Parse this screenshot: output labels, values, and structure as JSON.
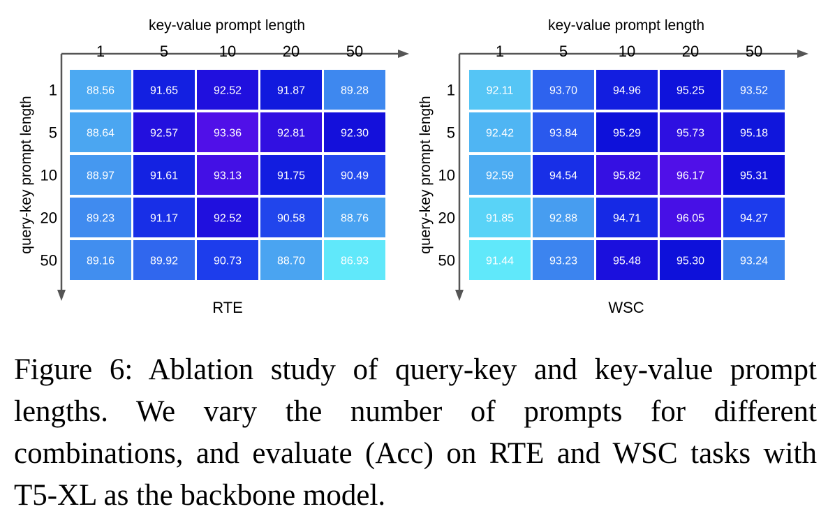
{
  "chart_data": [
    {
      "type": "heatmap",
      "title": "RTE",
      "xlabel": "key-value prompt length",
      "ylabel": "query-key prompt length",
      "x": [
        "1",
        "5",
        "10",
        "20",
        "50"
      ],
      "y": [
        "1",
        "5",
        "10",
        "20",
        "50"
      ],
      "values": [
        [
          88.56,
          91.65,
          92.52,
          91.87,
          89.28
        ],
        [
          88.64,
          92.57,
          93.36,
          92.81,
          92.3
        ],
        [
          88.97,
          91.61,
          93.13,
          91.75,
          90.49
        ],
        [
          89.23,
          91.17,
          92.52,
          90.58,
          88.76
        ],
        [
          89.16,
          89.92,
          90.73,
          88.7,
          86.93
        ]
      ],
      "labels": [
        [
          "88.56",
          "91.65",
          "92.52",
          "91.87",
          "89.28"
        ],
        [
          "88.64",
          "92.57",
          "93.36",
          "92.81",
          "92.30"
        ],
        [
          "88.97",
          "91.61",
          "93.13",
          "91.75",
          "90.49"
        ],
        [
          "89.23",
          "91.17",
          "92.52",
          "90.58",
          "88.76"
        ],
        [
          "89.16",
          "89.92",
          "90.73",
          "88.70",
          "86.93"
        ]
      ]
    },
    {
      "type": "heatmap",
      "title": "WSC",
      "xlabel": "key-value prompt length",
      "ylabel": "query-key prompt length",
      "x": [
        "1",
        "5",
        "10",
        "20",
        "50"
      ],
      "y": [
        "1",
        "5",
        "10",
        "20",
        "50"
      ],
      "values": [
        [
          92.11,
          93.7,
          94.96,
          95.25,
          93.52
        ],
        [
          92.42,
          93.84,
          95.29,
          95.73,
          95.18
        ],
        [
          92.59,
          94.54,
          95.82,
          96.17,
          95.31
        ],
        [
          91.85,
          92.88,
          94.71,
          96.05,
          94.27
        ],
        [
          91.44,
          93.23,
          95.48,
          95.3,
          93.24
        ]
      ],
      "labels": [
        [
          "92.11",
          "93.70",
          "94.96",
          "95.25",
          "93.52"
        ],
        [
          "92.42",
          "93.84",
          "95.29",
          "95.73",
          "95.18"
        ],
        [
          "92.59",
          "94.54",
          "95.82",
          "96.17",
          "95.31"
        ],
        [
          "91.85",
          "92.88",
          "94.71",
          "96.05",
          "94.27"
        ],
        [
          "91.44",
          "93.23",
          "95.48",
          "95.30",
          "93.24"
        ]
      ]
    }
  ],
  "caption": "Figure 6: Ablation study of query-key and key-value prompt lengths. We vary the number of prompts for different combinations, and evaluate (Acc) on RTE and WSC tasks with T5-XL as the backbone model."
}
